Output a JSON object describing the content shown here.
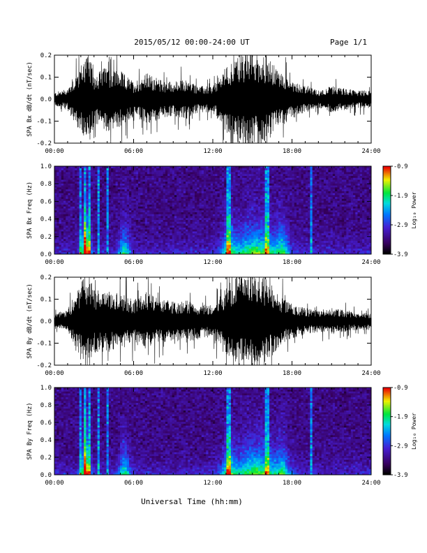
{
  "header": {
    "title": "2015/05/12  00:00-24:00 UT",
    "page": "Page 1/1"
  },
  "xlabel": "Universal Time (hh:mm)",
  "chart_data": [
    {
      "type": "line",
      "ylabel": "SPA Bx dB/dt (nT/sec)",
      "xlim": [
        0,
        24
      ],
      "ylim": [
        -0.2,
        0.2
      ],
      "x_tick_labels": [
        "00:00",
        "06:00",
        "12:00",
        "18:00",
        "24:00"
      ],
      "y_tick_labels": [
        "-0.2",
        "-0.1",
        "0.0",
        "0.1",
        "0.2"
      ],
      "x": [
        0,
        1,
        2,
        2.5,
        3,
        4,
        5,
        6,
        7,
        8,
        9,
        10,
        11,
        12,
        13,
        14,
        15,
        16,
        17,
        18,
        19,
        20,
        21,
        22,
        23,
        24
      ],
      "amplitude": [
        0.03,
        0.05,
        0.16,
        0.22,
        0.12,
        0.15,
        0.13,
        0.08,
        0.12,
        0.09,
        0.08,
        0.09,
        0.06,
        0.06,
        0.15,
        0.2,
        0.22,
        0.2,
        0.13,
        0.09,
        0.06,
        0.04,
        0.06,
        0.05,
        0.04,
        0.04
      ]
    },
    {
      "type": "heatmap",
      "ylabel": "SPA Bx Freq (Hz)",
      "colorbar_label": "Log₁₀ Power",
      "xlim": [
        0,
        24
      ],
      "ylim": [
        0,
        1.0
      ],
      "x_tick_labels": [
        "00:00",
        "06:00",
        "12:00",
        "18:00",
        "24:00"
      ],
      "y_tick_labels": [
        "0.0",
        "0.2",
        "0.4",
        "0.6",
        "0.8",
        "1.0"
      ],
      "colorbar_ticks": [
        "-0.9",
        "-1.9",
        "-2.9",
        "-3.9"
      ],
      "clim": [
        -3.9,
        -0.9
      ]
    },
    {
      "type": "line",
      "ylabel": "SPA By dB/dt (nT/sec)",
      "xlim": [
        0,
        24
      ],
      "ylim": [
        -0.2,
        0.2
      ],
      "x_tick_labels": [
        "00:00",
        "06:00",
        "12:00",
        "18:00",
        "24:00"
      ],
      "y_tick_labels": [
        "-0.2",
        "-0.1",
        "0.0",
        "0.1",
        "0.2"
      ],
      "x": [
        0,
        1,
        2,
        2.5,
        3,
        4,
        5,
        6,
        7,
        8,
        9,
        10,
        11,
        12,
        13,
        14,
        15,
        16,
        17,
        18,
        19,
        20,
        21,
        22,
        23,
        24
      ],
      "amplitude": [
        0.03,
        0.05,
        0.18,
        0.22,
        0.14,
        0.14,
        0.13,
        0.1,
        0.13,
        0.1,
        0.09,
        0.1,
        0.08,
        0.07,
        0.16,
        0.21,
        0.22,
        0.2,
        0.12,
        0.08,
        0.06,
        0.05,
        0.06,
        0.05,
        0.04,
        0.04
      ]
    },
    {
      "type": "heatmap",
      "ylabel": "SPA By Freq (Hz)",
      "colorbar_label": "Log₁₀ Power",
      "xlim": [
        0,
        24
      ],
      "ylim": [
        0,
        1.0
      ],
      "x_tick_labels": [
        "00:00",
        "06:00",
        "12:00",
        "18:00",
        "24:00"
      ],
      "y_tick_labels": [
        "0.0",
        "0.2",
        "0.4",
        "0.6",
        "0.8",
        "1.0"
      ],
      "colorbar_ticks": [
        "-0.9",
        "-1.9",
        "-2.9",
        "-3.9"
      ],
      "clim": [
        -3.9,
        -0.9
      ]
    }
  ]
}
